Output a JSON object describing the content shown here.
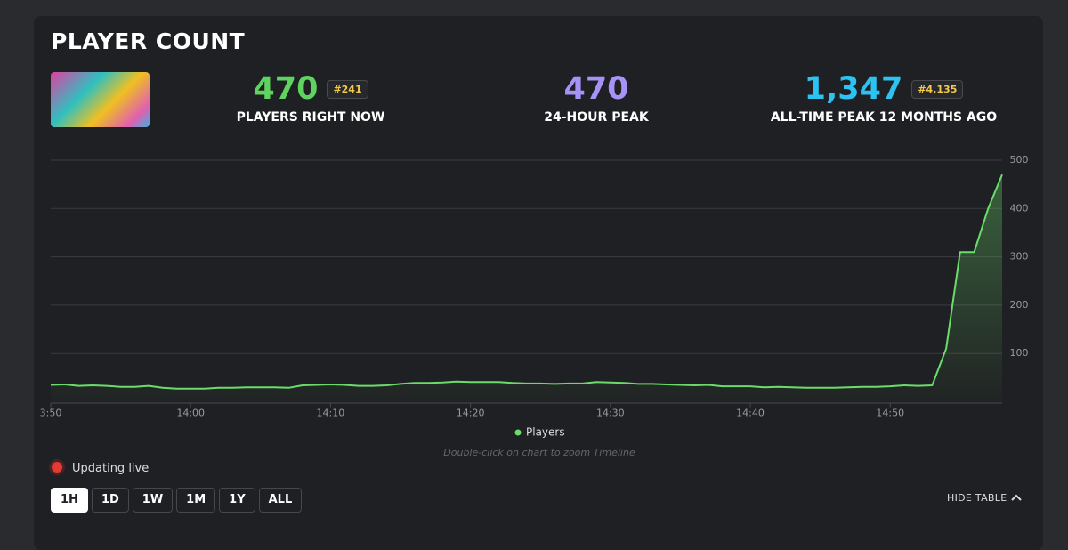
{
  "header": {
    "title": "PLAYER COUNT"
  },
  "stats": [
    {
      "value": "470",
      "rank": "#241",
      "label": "PLAYERS RIGHT NOW",
      "color": "#5fd35f"
    },
    {
      "value": "470",
      "label": "24-HOUR PEAK",
      "color": "#a792f5"
    },
    {
      "value": "1,347",
      "rank": "#4,135",
      "label": "ALL-TIME PEAK 12 MONTHS AGO",
      "color": "#2cc3f2"
    }
  ],
  "chart_data": {
    "type": "line",
    "x": [
      "13:50",
      "13:51",
      "13:52",
      "13:53",
      "13:54",
      "13:55",
      "13:56",
      "13:57",
      "13:58",
      "13:59",
      "14:00",
      "14:01",
      "14:02",
      "14:03",
      "14:04",
      "14:05",
      "14:06",
      "14:07",
      "14:08",
      "14:09",
      "14:10",
      "14:11",
      "14:12",
      "14:13",
      "14:14",
      "14:15",
      "14:16",
      "14:17",
      "14:18",
      "14:19",
      "14:20",
      "14:21",
      "14:22",
      "14:23",
      "14:24",
      "14:25",
      "14:26",
      "14:27",
      "14:28",
      "14:29",
      "14:30",
      "14:31",
      "14:32",
      "14:33",
      "14:34",
      "14:35",
      "14:36",
      "14:37",
      "14:38",
      "14:39",
      "14:40",
      "14:41",
      "14:42",
      "14:43",
      "14:44",
      "14:45",
      "14:46",
      "14:47",
      "14:48",
      "14:49",
      "14:50",
      "14:51",
      "14:52",
      "14:53",
      "14:54",
      "14:55",
      "14:56",
      "14:57",
      "14:58"
    ],
    "series": [
      {
        "name": "Players",
        "color": "#6bdc6b",
        "values": [
          35,
          36,
          33,
          34,
          33,
          31,
          31,
          33,
          29,
          27,
          27,
          27,
          29,
          29,
          30,
          30,
          30,
          29,
          34,
          35,
          36,
          35,
          33,
          33,
          34,
          37,
          39,
          39,
          40,
          42,
          41,
          41,
          41,
          39,
          38,
          38,
          37,
          38,
          38,
          41,
          40,
          39,
          37,
          37,
          36,
          35,
          34,
          35,
          32,
          32,
          32,
          30,
          31,
          30,
          29,
          29,
          29,
          30,
          31,
          31,
          32,
          34,
          33,
          34,
          110,
          310,
          310,
          400,
          470
        ]
      }
    ],
    "xlim": [
      "13:50",
      "14:58"
    ],
    "xticks": [
      {
        "value": "13:50",
        "label": "3:50"
      },
      "14:00",
      "14:10",
      "14:20",
      "14:30",
      "14:40",
      "14:50"
    ],
    "ylim": [
      0,
      500
    ],
    "yticks": [
      100,
      200,
      300,
      400,
      500
    ],
    "grid": true,
    "annotation": "Double-click on chart to zoom Timeline"
  },
  "status": "Updating live",
  "range_buttons": [
    "1H",
    "1D",
    "1W",
    "1M",
    "1Y",
    "ALL"
  ],
  "selected_range": 0,
  "table_toggle": "HIDE TABLE"
}
